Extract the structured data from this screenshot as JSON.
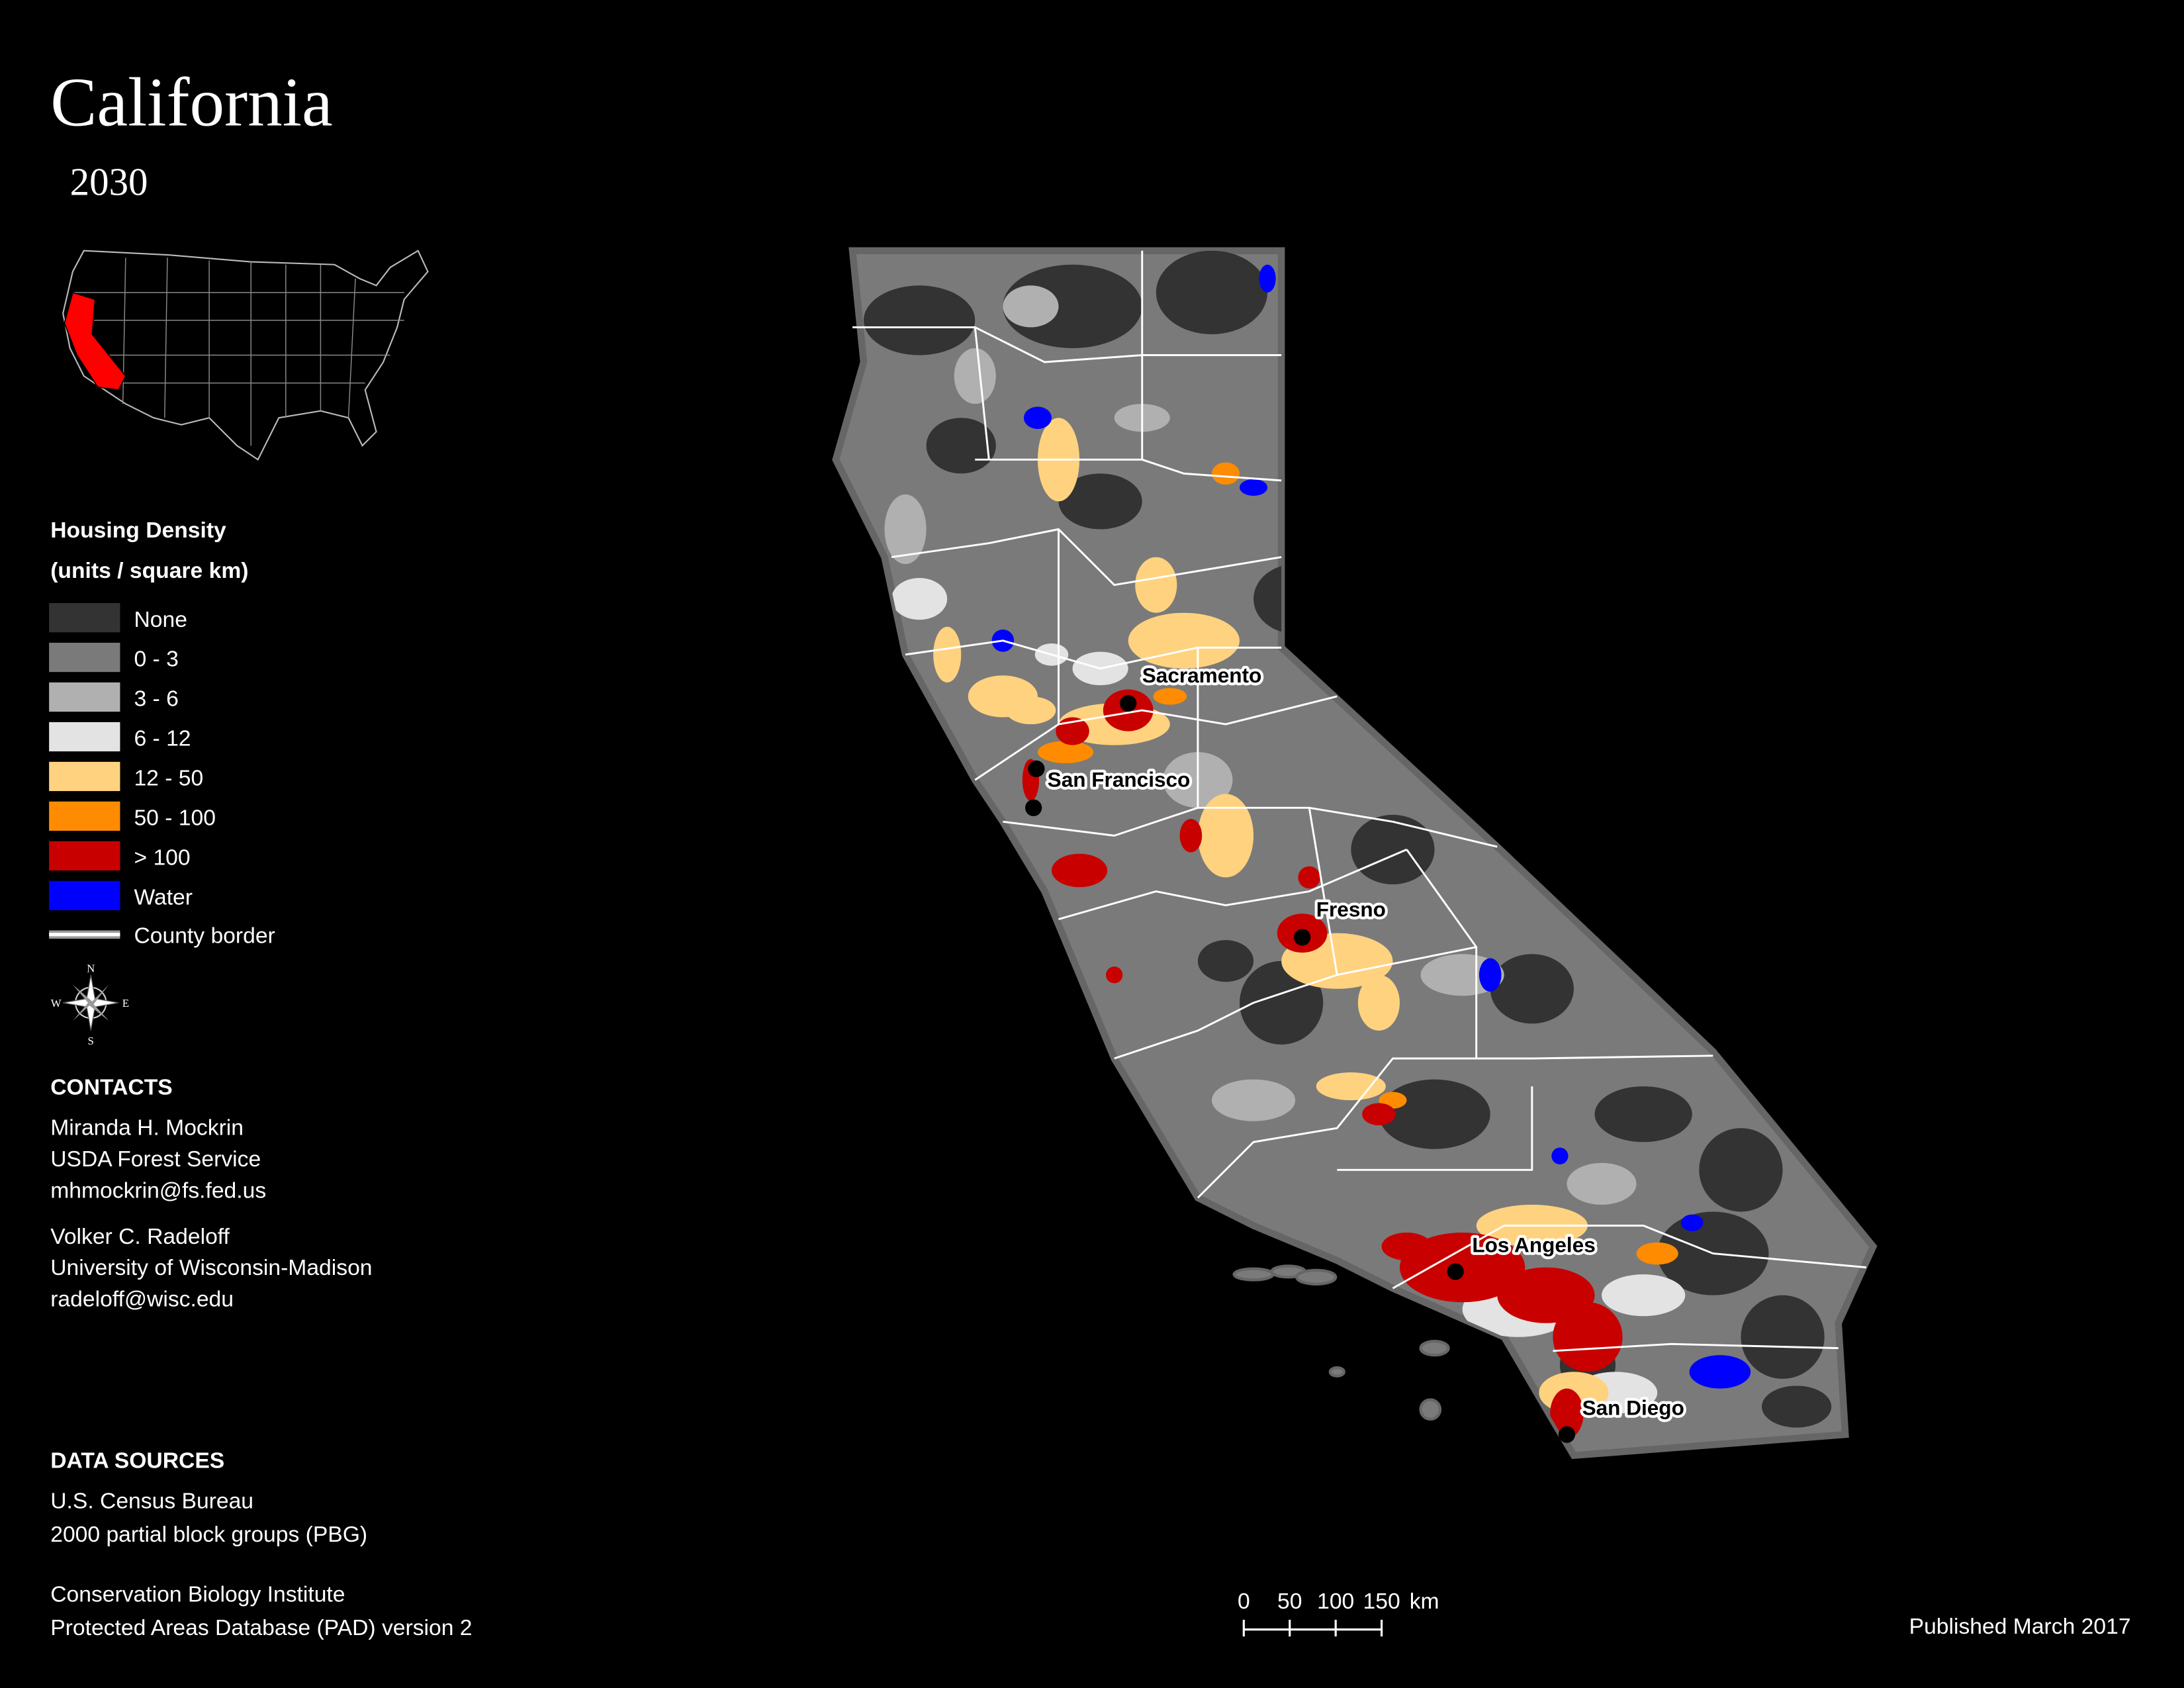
{
  "title": "California",
  "subtitle": "2030",
  "legend": {
    "title": "Housing Density",
    "subtitle": "(units / square km)",
    "items": [
      {
        "label": "None",
        "color": "#333333"
      },
      {
        "label": "0 - 3",
        "color": "#7a7a7a"
      },
      {
        "label": "3 - 6",
        "color": "#b0b0b0"
      },
      {
        "label": "6 - 12",
        "color": "#e3e3e3"
      },
      {
        "label": "12 - 50",
        "color": "#ffd27f"
      },
      {
        "label": "50 - 100",
        "color": "#ff8c00"
      },
      {
        "label": "> 100",
        "color": "#c80000"
      },
      {
        "label": "Water",
        "color": "#0000ff"
      }
    ],
    "county_border": "County border"
  },
  "compass": {
    "n": "N",
    "e": "E",
    "s": "S",
    "w": "W"
  },
  "cities": [
    "Sacramento",
    "San Francisco",
    "Fresno",
    "Los Angeles",
    "San Diego"
  ],
  "contacts": {
    "heading": "CONTACTS",
    "people": [
      [
        "Miranda H. Mockrin",
        "USDA Forest Service",
        "mhmockrin@fs.fed.us"
      ],
      [
        "Volker C. Radeloff",
        "University of Wisconsin-Madison",
        "radeloff@wisc.edu"
      ]
    ]
  },
  "data_sources": {
    "heading": "DATA SOURCES",
    "groups": [
      [
        "U.S. Census Bureau",
        "2000 partial block groups (PBG)"
      ],
      [
        "Conservation Biology Institute",
        "Protected Areas Database (PAD) version 2"
      ]
    ]
  },
  "scale_bar": {
    "ticks": [
      0,
      50,
      100,
      150
    ],
    "unit": "km"
  },
  "published": "Published March 2017"
}
